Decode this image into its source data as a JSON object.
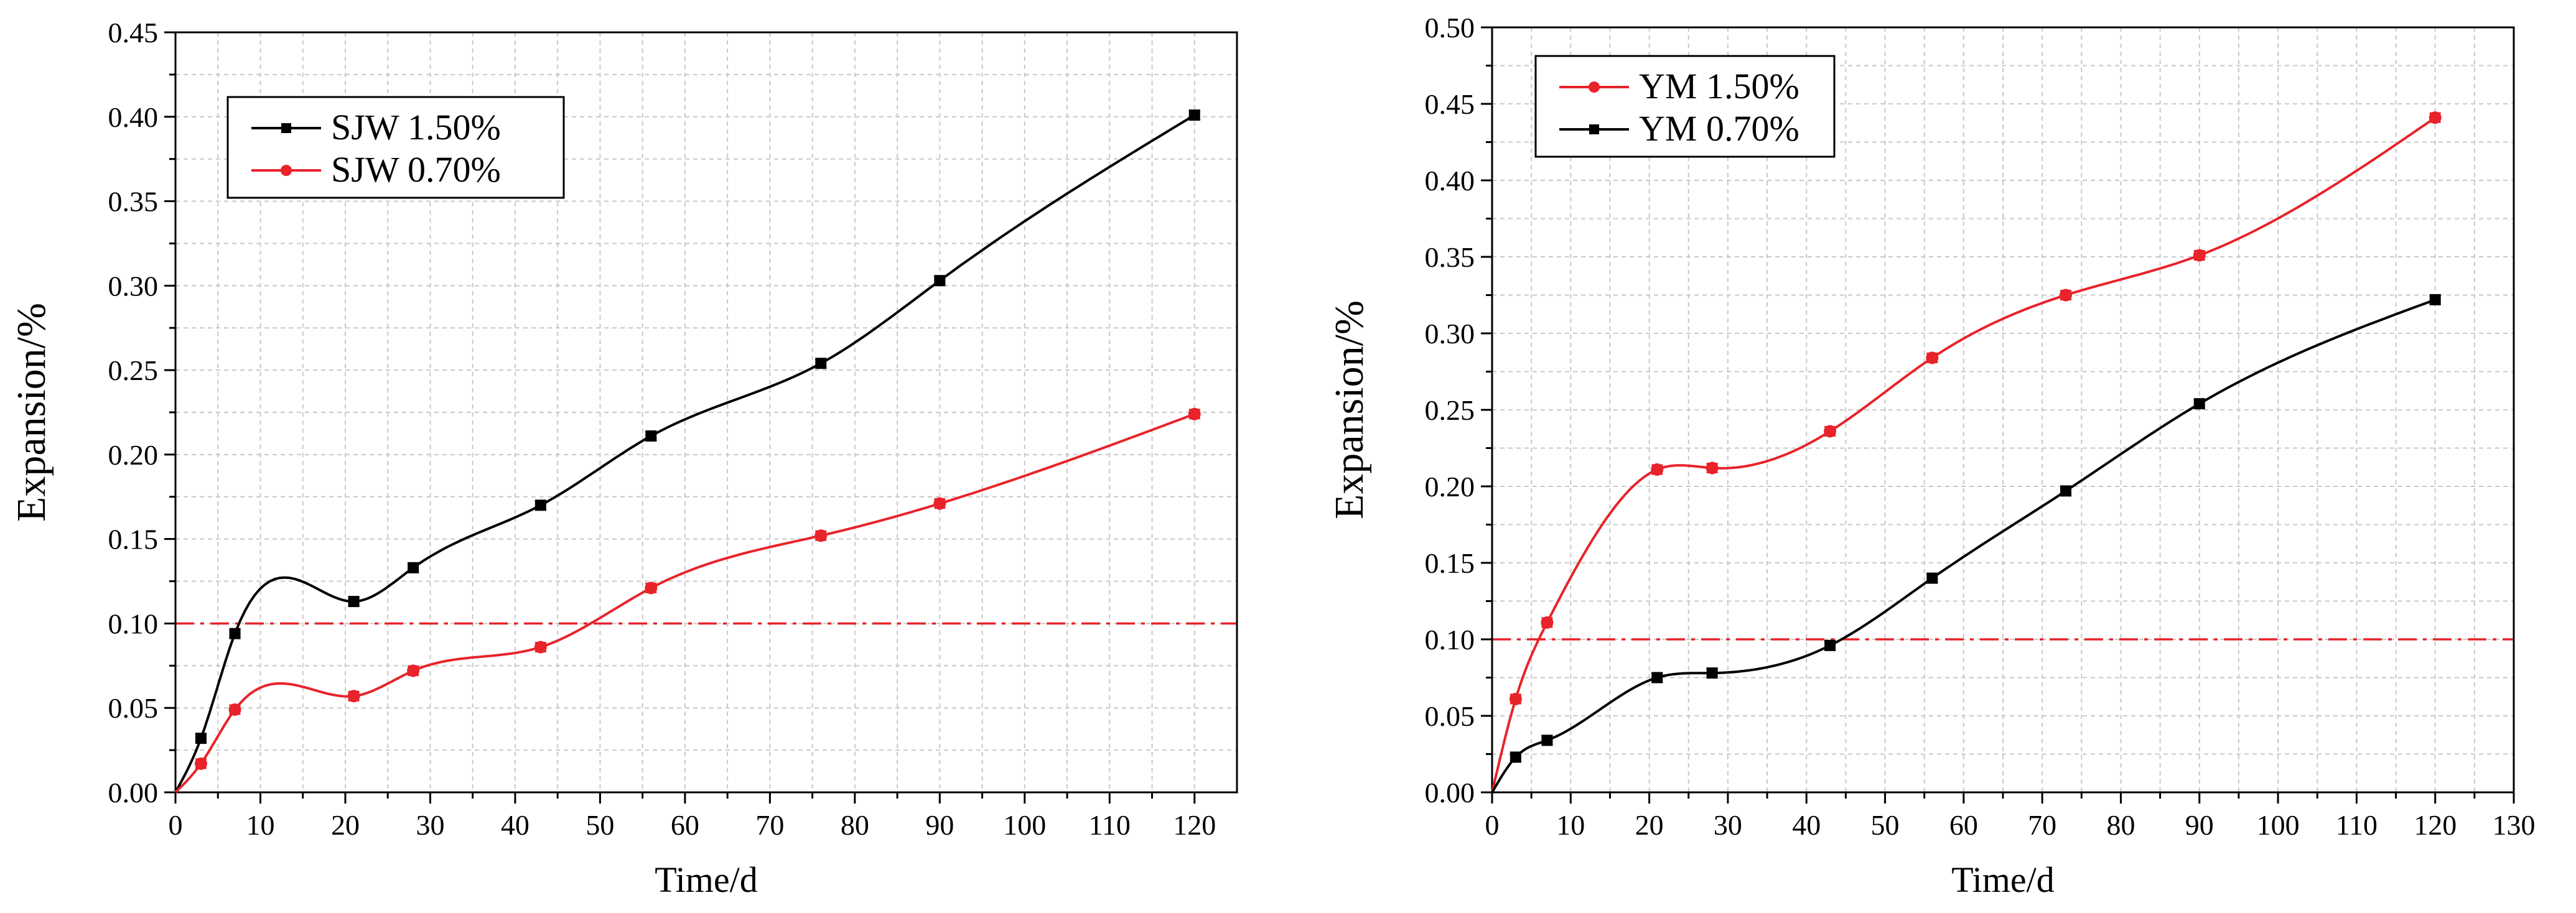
{
  "chart_data": [
    {
      "type": "line",
      "title": "",
      "xlabel": "Time/d",
      "ylabel": "Expansion/%",
      "xlim": [
        0,
        125
      ],
      "ylim": [
        0,
        0.45
      ],
      "xticks": [
        "0",
        "10",
        "20",
        "30",
        "40",
        "50",
        "60",
        "70",
        "80",
        "90",
        "100",
        "110",
        "120"
      ],
      "yticks": [
        "0.00",
        "0.05",
        "0.10",
        "0.15",
        "0.20",
        "0.25",
        "0.30",
        "0.35",
        "0.40",
        "0.45"
      ],
      "grid": true,
      "legend_position": "top-left",
      "threshold": {
        "value": 0.1,
        "color": "#e8232a",
        "style": "dash-dot"
      },
      "series": [
        {
          "name": "SJW 1.50%",
          "color": "#000000",
          "marker": "square",
          "x": [
            0,
            3,
            7,
            21,
            28,
            43,
            56,
            76,
            90,
            120
          ],
          "y": [
            0,
            0.032,
            0.094,
            0.113,
            0.133,
            0.17,
            0.211,
            0.254,
            0.303,
            0.401
          ]
        },
        {
          "name": "SJW 0.70%",
          "color": "#e8232a",
          "marker": "circle",
          "x": [
            0,
            3,
            7,
            21,
            28,
            43,
            56,
            76,
            90,
            120
          ],
          "y": [
            0,
            0.017,
            0.049,
            0.057,
            0.072,
            0.086,
            0.121,
            0.152,
            0.171,
            0.224
          ]
        }
      ]
    },
    {
      "type": "line",
      "title": "",
      "xlabel": "Time/d",
      "ylabel": "Expansion/%",
      "xlim": [
        0,
        130
      ],
      "ylim": [
        0,
        0.5
      ],
      "xticks": [
        "0",
        "10",
        "20",
        "30",
        "40",
        "50",
        "60",
        "70",
        "80",
        "90",
        "100",
        "110",
        "120",
        "130"
      ],
      "yticks": [
        "0.00",
        "0.05",
        "0.10",
        "0.15",
        "0.20",
        "0.25",
        "0.30",
        "0.35",
        "0.40",
        "0.45",
        "0.50"
      ],
      "grid": true,
      "legend_position": "top-left",
      "threshold": {
        "value": 0.1,
        "color": "#e8232a",
        "style": "dash-dot"
      },
      "series": [
        {
          "name": "YM 1.50%",
          "color": "#e8232a",
          "marker": "circle",
          "x": [
            0,
            3,
            7,
            21,
            28,
            43,
            56,
            73,
            90,
            120
          ],
          "y": [
            0,
            0.061,
            0.111,
            0.211,
            0.212,
            0.236,
            0.284,
            0.325,
            0.351,
            0.441
          ]
        },
        {
          "name": "YM 0.70%",
          "color": "#000000",
          "marker": "square",
          "x": [
            0,
            3,
            7,
            21,
            28,
            43,
            56,
            73,
            90,
            120
          ],
          "y": [
            0,
            0.023,
            0.034,
            0.075,
            0.078,
            0.096,
            0.14,
            0.197,
            0.254,
            0.322
          ]
        }
      ]
    }
  ]
}
